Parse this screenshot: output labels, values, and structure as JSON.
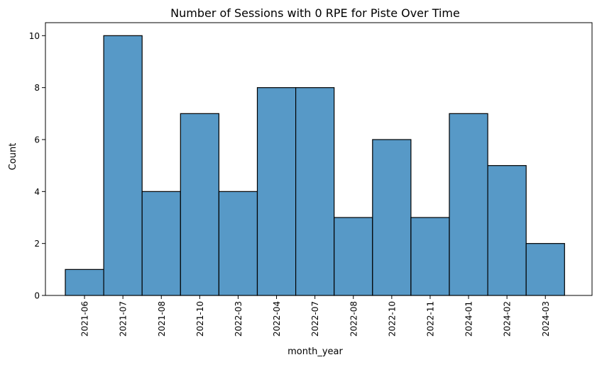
{
  "chart_data": {
    "type": "bar",
    "title": "Number of Sessions with 0 RPE for Piste Over Time",
    "xlabel": "month_year",
    "ylabel": "Count",
    "categories": [
      "2021-06",
      "2021-07",
      "2021-08",
      "2021-10",
      "2022-03",
      "2022-04",
      "2022-07",
      "2022-08",
      "2022-10",
      "2022-11",
      "2024-01",
      "2024-02",
      "2024-03"
    ],
    "values": [
      1,
      10,
      4,
      7,
      4,
      8,
      8,
      3,
      6,
      3,
      7,
      5,
      2
    ],
    "ylim": [
      0,
      10.5
    ],
    "yticks": [
      0,
      2,
      4,
      6,
      8,
      10
    ],
    "grid": false,
    "legend": "none",
    "bar_color": "#5799c7",
    "edge_color": "#000000"
  }
}
